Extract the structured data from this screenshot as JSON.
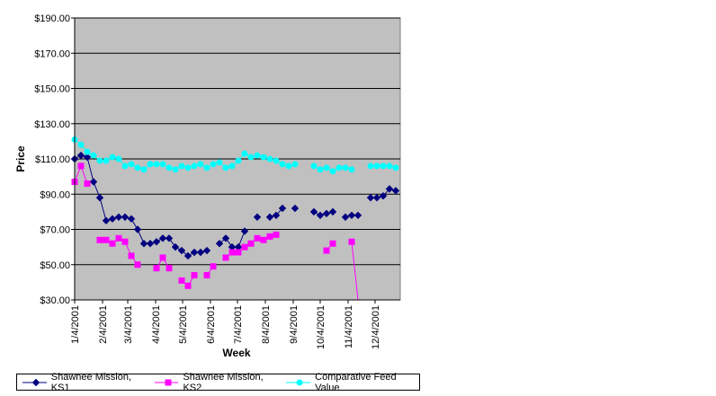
{
  "chart_data": {
    "type": "line",
    "xlabel": "Week",
    "ylabel": "Price",
    "x_tick_labels": [
      "1/4/2001",
      "2/4/2001",
      "3/4/2001",
      "4/4/2001",
      "5/4/2001",
      "6/4/2001",
      "7/4/2001",
      "8/4/2001",
      "9/4/2001",
      "10/4/2001",
      "11/4/2001",
      "12/4/2001"
    ],
    "y_tick_labels": [
      "$30.00",
      "$50.00",
      "$70.00",
      "$90.00",
      "$110.00",
      "$130.00",
      "$150.00",
      "$170.00",
      "$190.00"
    ],
    "ylim": [
      30,
      190
    ],
    "xlim": [
      "2001-01-04",
      "2001-12-27"
    ],
    "grid": true,
    "legend_position": "bottom",
    "plot_background": "#c0c0c0",
    "series": [
      {
        "name": "Shawnee Mission, KS1",
        "color": "#000080",
        "marker": "diamond",
        "points": [
          [
            "2001-01-04",
            110
          ],
          [
            "2001-01-11",
            112
          ],
          [
            "2001-01-18",
            111
          ],
          [
            "2001-01-25",
            97
          ],
          [
            "2001-02-01",
            88
          ],
          [
            "2001-02-08",
            75
          ],
          [
            "2001-02-15",
            76
          ],
          [
            "2001-02-22",
            77
          ],
          [
            "2001-03-01",
            77
          ],
          [
            "2001-03-08",
            76
          ],
          [
            "2001-03-15",
            70
          ],
          [
            "2001-03-22",
            62
          ],
          [
            "2001-03-29",
            62
          ],
          [
            "2001-04-05",
            63
          ],
          [
            "2001-04-12",
            65
          ],
          [
            "2001-04-19",
            65
          ],
          [
            "2001-04-26",
            60
          ],
          [
            "2001-05-03",
            58
          ],
          [
            "2001-05-10",
            55
          ],
          [
            "2001-05-17",
            57
          ],
          [
            "2001-05-24",
            57
          ],
          [
            "2001-05-31",
            58
          ],
          null,
          [
            "2001-06-14",
            62
          ],
          [
            "2001-06-21",
            65
          ],
          [
            "2001-06-28",
            60
          ],
          [
            "2001-07-05",
            60
          ],
          [
            "2001-07-12",
            69
          ],
          null,
          [
            "2001-07-26",
            77
          ],
          null,
          [
            "2001-08-09",
            77
          ],
          [
            "2001-08-16",
            78
          ],
          [
            "2001-08-23",
            82
          ],
          null,
          [
            "2001-09-06",
            82
          ],
          null,
          null,
          [
            "2001-09-27",
            80
          ],
          [
            "2001-10-04",
            78
          ],
          [
            "2001-10-11",
            79
          ],
          [
            "2001-10-18",
            80
          ],
          null,
          [
            "2001-11-01",
            77
          ],
          [
            "2001-11-08",
            78
          ],
          [
            "2001-11-15",
            78
          ],
          null,
          [
            "2001-11-29",
            88
          ],
          [
            "2001-12-06",
            88
          ],
          [
            "2001-12-13",
            89
          ],
          [
            "2001-12-20",
            93
          ],
          [
            "2001-12-27",
            92
          ]
        ]
      },
      {
        "name": "Shawnee Mission, KS2",
        "color": "#ff00ff",
        "marker": "square",
        "points": [
          [
            "2001-01-04",
            97
          ],
          [
            "2001-01-11",
            106
          ],
          [
            "2001-01-18",
            96
          ],
          null,
          [
            "2001-02-01",
            64
          ],
          [
            "2001-02-08",
            64
          ],
          [
            "2001-02-15",
            62
          ],
          [
            "2001-02-22",
            65
          ],
          [
            "2001-03-01",
            63
          ],
          [
            "2001-03-08",
            55
          ],
          [
            "2001-03-15",
            50
          ],
          null,
          null,
          [
            "2001-04-05",
            48
          ],
          [
            "2001-04-12",
            54
          ],
          [
            "2001-04-19",
            48
          ],
          null,
          [
            "2001-05-03",
            41
          ],
          [
            "2001-05-10",
            38
          ],
          [
            "2001-05-17",
            44
          ],
          null,
          [
            "2001-05-31",
            44
          ],
          [
            "2001-06-07",
            49
          ],
          null,
          [
            "2001-06-21",
            54
          ],
          [
            "2001-06-28",
            57
          ],
          [
            "2001-07-05",
            57
          ],
          [
            "2001-07-12",
            60
          ],
          [
            "2001-07-19",
            62
          ],
          [
            "2001-07-26",
            65
          ],
          [
            "2001-08-02",
            64
          ],
          [
            "2001-08-09",
            66
          ],
          [
            "2001-08-16",
            67
          ],
          null,
          null,
          null,
          null,
          null,
          null,
          null,
          [
            "2001-10-11",
            58
          ],
          [
            "2001-10-18",
            62
          ],
          null,
          null,
          [
            "2001-11-08",
            63
          ],
          [
            "2001-11-15",
            30
          ]
        ]
      },
      {
        "name": "Comparative Feed Value",
        "color": "#00ffff",
        "marker": "circle",
        "points": [
          [
            "2001-01-04",
            121
          ],
          [
            "2001-01-11",
            118
          ],
          [
            "2001-01-18",
            114
          ],
          [
            "2001-01-25",
            112
          ],
          [
            "2001-02-01",
            109
          ],
          [
            "2001-02-08",
            109
          ],
          [
            "2001-02-15",
            111
          ],
          [
            "2001-02-22",
            110
          ],
          [
            "2001-03-01",
            106
          ],
          [
            "2001-03-08",
            107
          ],
          [
            "2001-03-15",
            105
          ],
          [
            "2001-03-22",
            104
          ],
          [
            "2001-03-29",
            107
          ],
          [
            "2001-04-05",
            107
          ],
          [
            "2001-04-12",
            107
          ],
          [
            "2001-04-19",
            105
          ],
          [
            "2001-04-26",
            104
          ],
          [
            "2001-05-03",
            106
          ],
          [
            "2001-05-10",
            105
          ],
          [
            "2001-05-17",
            106
          ],
          [
            "2001-05-24",
            107
          ],
          [
            "2001-05-31",
            105
          ],
          [
            "2001-06-07",
            107
          ],
          [
            "2001-06-14",
            108
          ],
          [
            "2001-06-21",
            105
          ],
          [
            "2001-06-28",
            106
          ],
          [
            "2001-07-05",
            109
          ],
          [
            "2001-07-12",
            113
          ],
          [
            "2001-07-19",
            111
          ],
          [
            "2001-07-26",
            112
          ],
          [
            "2001-08-02",
            111
          ],
          [
            "2001-08-09",
            110
          ],
          [
            "2001-08-16",
            109
          ],
          [
            "2001-08-23",
            107
          ],
          [
            "2001-08-30",
            106
          ],
          [
            "2001-09-06",
            107
          ],
          null,
          null,
          [
            "2001-09-27",
            106
          ],
          [
            "2001-10-04",
            104
          ],
          [
            "2001-10-11",
            105
          ],
          [
            "2001-10-18",
            103
          ],
          [
            "2001-10-25",
            105
          ],
          [
            "2001-11-01",
            105
          ],
          [
            "2001-11-08",
            104
          ],
          null,
          null,
          [
            "2001-11-29",
            106
          ],
          [
            "2001-12-06",
            106
          ],
          [
            "2001-12-13",
            106
          ],
          [
            "2001-12-20",
            106
          ],
          [
            "2001-12-27",
            105
          ]
        ]
      }
    ]
  }
}
